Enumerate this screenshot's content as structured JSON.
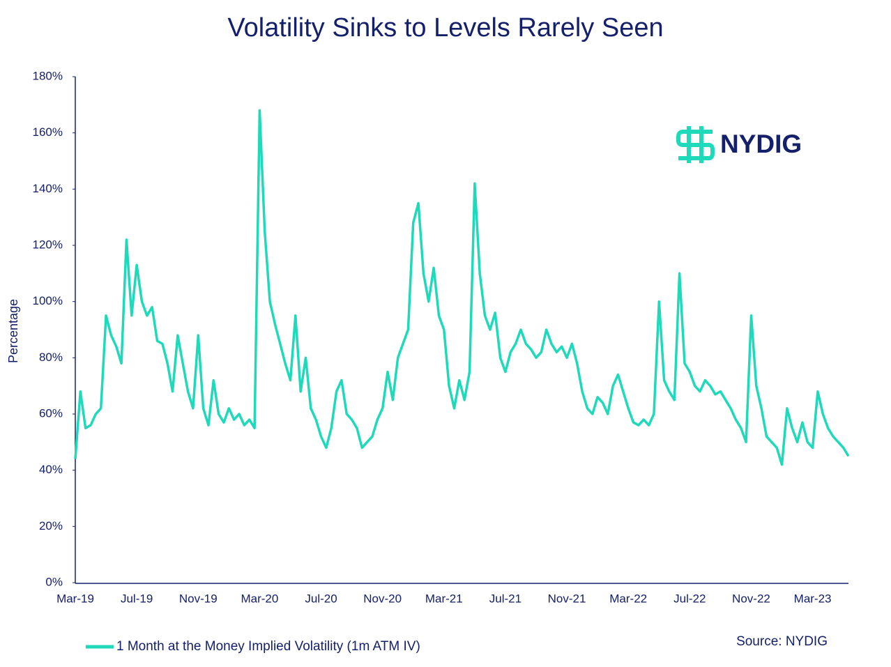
{
  "chart_data": {
    "type": "line",
    "title": "Volatility Sinks to Levels Rarely Seen",
    "y_label": "Percentage",
    "source": "Source: NYDIG",
    "logo": "NYDIG",
    "categories": [
      "Mar-19",
      null,
      null,
      null,
      null,
      null,
      null,
      null,
      null,
      null,
      null,
      null,
      "Jul-19",
      null,
      null,
      null,
      null,
      null,
      null,
      null,
      null,
      null,
      null,
      null,
      "Nov-19",
      null,
      null,
      null,
      null,
      null,
      null,
      null,
      null,
      null,
      null,
      null,
      "Mar-20",
      null,
      null,
      null,
      null,
      null,
      null,
      null,
      null,
      null,
      null,
      null,
      "Jul-20",
      null,
      null,
      null,
      null,
      null,
      null,
      null,
      null,
      null,
      null,
      null,
      "Nov-20",
      null,
      null,
      null,
      null,
      null,
      null,
      null,
      null,
      null,
      null,
      null,
      "Mar-21",
      null,
      null,
      null,
      null,
      null,
      null,
      null,
      null,
      null,
      null,
      null,
      "Jul-21",
      null,
      null,
      null,
      null,
      null,
      null,
      null,
      null,
      null,
      null,
      null,
      "Nov-21",
      null,
      null,
      null,
      null,
      null,
      null,
      null,
      null,
      null,
      null,
      null,
      "Mar-22",
      null,
      null,
      null,
      null,
      null,
      null,
      null,
      null,
      null,
      null,
      null,
      "Jul-22",
      null,
      null,
      null,
      null,
      null,
      null,
      null,
      null,
      null,
      null,
      null,
      "Nov-22",
      null,
      null,
      null,
      null,
      null,
      null,
      null,
      null,
      null,
      null,
      null,
      "Mar-23",
      null,
      null,
      null,
      null,
      null,
      null,
      null
    ],
    "series": [
      {
        "name": "1 Month at the Money Implied Volatility (1m ATM IV)",
        "color": "#1fd9bb",
        "values": [
          44,
          68,
          55,
          56,
          60,
          62,
          95,
          88,
          84,
          78,
          122,
          95,
          113,
          100,
          95,
          98,
          86,
          85,
          78,
          68,
          88,
          78,
          68,
          62,
          88,
          62,
          56,
          72,
          60,
          57,
          62,
          58,
          60,
          56,
          58,
          55,
          168,
          125,
          100,
          92,
          85,
          78,
          72,
          95,
          68,
          80,
          62,
          58,
          52,
          48,
          55,
          68,
          72,
          60,
          58,
          55,
          48,
          50,
          52,
          58,
          62,
          75,
          65,
          80,
          85,
          90,
          128,
          135,
          110,
          100,
          112,
          95,
          90,
          70,
          62,
          72,
          65,
          75,
          142,
          110,
          95,
          90,
          96,
          80,
          75,
          82,
          85,
          90,
          85,
          83,
          80,
          82,
          90,
          85,
          82,
          84,
          80,
          85,
          78,
          68,
          62,
          60,
          66,
          64,
          60,
          70,
          74,
          68,
          62,
          57,
          56,
          58,
          56,
          60,
          100,
          72,
          68,
          65,
          110,
          78,
          75,
          70,
          68,
          72,
          70,
          67,
          68,
          65,
          62,
          58,
          55,
          50,
          95,
          70,
          62,
          52,
          50,
          48,
          42,
          62,
          55,
          50,
          57,
          50,
          48,
          68,
          60,
          55,
          52,
          50,
          48,
          45
        ]
      }
    ],
    "ylim": [
      0,
      180
    ],
    "yticks": [
      {
        "value": 0,
        "label": "0%"
      },
      {
        "value": 20,
        "label": "20%"
      },
      {
        "value": 40,
        "label": "40%"
      },
      {
        "value": 60,
        "label": "60%"
      },
      {
        "value": 80,
        "label": "80%"
      },
      {
        "value": 100,
        "label": "100%"
      },
      {
        "value": 120,
        "label": "120%"
      },
      {
        "value": 140,
        "label": "140%"
      },
      {
        "value": 160,
        "label": "160%"
      },
      {
        "value": 180,
        "label": "180%"
      }
    ],
    "grid": false
  }
}
